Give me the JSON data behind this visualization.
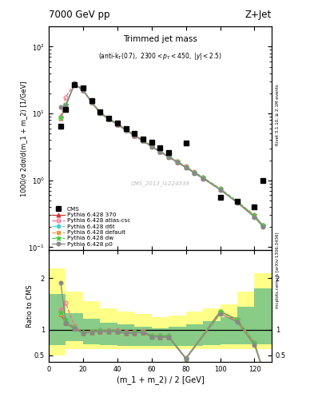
{
  "title_left": "7000 GeV pp",
  "title_right": "Z+Jet",
  "plot_title": "Trimmed jet mass",
  "ylabel_main": "1000/σ 2dσ/d(m_1 + m_2) [1/GeV]",
  "ylabel_ratio": "Ratio to CMS",
  "xlabel": "(m_1 + m_2) / 2 [GeV]",
  "watermark": "CMS_2013_I1224539",
  "rivet_label": "Rivet 3.1.10, ≥ 2.1M events",
  "mcplots_label": "mcplots.cern.ch [arXiv:1306.3436]",
  "x_bins": [
    7,
    10,
    15,
    20,
    25,
    30,
    35,
    40,
    45,
    50,
    55,
    60,
    65,
    70,
    75,
    80,
    85,
    90,
    100,
    110,
    120,
    125
  ],
  "cms_data": [
    6.5,
    11.5,
    27.0,
    24.0,
    15.5,
    10.5,
    8.5,
    7.2,
    6.0,
    5.0,
    4.1,
    3.7,
    3.1,
    2.6,
    null,
    3.6,
    null,
    null,
    0.55,
    0.48,
    0.4,
    1.0
  ],
  "py370": [
    8.5,
    13.0,
    27.5,
    22.5,
    14.8,
    10.2,
    8.2,
    6.9,
    5.6,
    4.7,
    3.9,
    3.2,
    2.68,
    2.24,
    1.88,
    1.57,
    1.3,
    1.08,
    0.73,
    0.47,
    0.29,
    0.21
  ],
  "pyatlas": [
    9.0,
    17.5,
    28.8,
    22.8,
    15.1,
    10.5,
    8.4,
    7.1,
    5.8,
    4.8,
    4.0,
    3.3,
    2.75,
    2.3,
    1.92,
    1.61,
    1.33,
    1.1,
    0.75,
    0.48,
    0.3,
    0.21
  ],
  "pyd6t": [
    8.6,
    13.5,
    27.8,
    22.6,
    14.9,
    10.3,
    8.3,
    7.0,
    5.7,
    4.75,
    3.95,
    3.25,
    2.7,
    2.26,
    1.89,
    1.58,
    1.31,
    1.09,
    0.74,
    0.47,
    0.29,
    0.21
  ],
  "pydefault": [
    8.5,
    13.2,
    27.6,
    22.5,
    14.85,
    10.25,
    8.25,
    6.95,
    5.65,
    4.72,
    3.92,
    3.22,
    2.69,
    2.25,
    1.88,
    1.57,
    1.3,
    1.08,
    0.74,
    0.47,
    0.29,
    0.21
  ],
  "pydw": [
    8.7,
    13.7,
    28.0,
    22.7,
    15.0,
    10.35,
    8.35,
    7.05,
    5.72,
    4.78,
    3.97,
    3.27,
    2.72,
    2.28,
    1.91,
    1.6,
    1.32,
    1.1,
    0.75,
    0.48,
    0.3,
    0.21
  ],
  "pyp0": [
    12.5,
    13.0,
    27.4,
    22.3,
    14.75,
    10.15,
    8.18,
    6.88,
    5.6,
    4.68,
    3.88,
    3.19,
    2.66,
    2.22,
    1.85,
    1.55,
    1.28,
    1.06,
    0.72,
    0.46,
    0.28,
    0.2
  ],
  "ratio_py370": [
    1.3,
    1.13,
    1.02,
    0.94,
    0.95,
    0.97,
    0.97,
    0.96,
    0.93,
    0.94,
    0.95,
    0.87,
    0.86,
    0.86,
    null,
    0.44,
    null,
    null,
    1.35,
    1.18,
    0.73,
    0.21
  ],
  "ratio_pyatlas": [
    1.38,
    1.52,
    1.07,
    0.95,
    0.97,
    0.99,
    0.99,
    0.99,
    0.97,
    0.96,
    0.98,
    0.89,
    0.89,
    0.88,
    null,
    0.45,
    null,
    null,
    1.36,
    1.2,
    0.75,
    0.21
  ],
  "ratio_pyd6t": [
    1.32,
    1.17,
    1.03,
    0.94,
    0.96,
    0.98,
    0.98,
    0.97,
    0.95,
    0.95,
    0.96,
    0.88,
    0.87,
    0.87,
    null,
    0.44,
    null,
    null,
    1.35,
    1.18,
    0.73,
    0.21
  ],
  "ratio_pydefault": [
    1.31,
    1.15,
    1.02,
    0.94,
    0.96,
    0.98,
    0.97,
    0.97,
    0.94,
    0.94,
    0.96,
    0.87,
    0.87,
    0.87,
    null,
    0.44,
    null,
    null,
    1.35,
    1.18,
    0.73,
    0.21
  ],
  "ratio_pydw": [
    1.34,
    1.19,
    1.04,
    0.95,
    0.97,
    0.99,
    0.98,
    0.98,
    0.95,
    0.96,
    0.97,
    0.88,
    0.88,
    0.88,
    null,
    0.44,
    null,
    null,
    1.36,
    1.2,
    0.75,
    0.21
  ],
  "ratio_pyp0": [
    1.92,
    1.13,
    1.02,
    0.93,
    0.95,
    0.97,
    0.96,
    0.96,
    0.93,
    0.94,
    0.95,
    0.86,
    0.86,
    0.85,
    null,
    0.43,
    null,
    null,
    1.31,
    1.15,
    0.7,
    0.2
  ],
  "band_x": [
    0,
    5,
    10,
    20,
    30,
    40,
    50,
    60,
    70,
    80,
    90,
    100,
    110,
    120,
    130
  ],
  "band_yellow_lo": [
    0.5,
    0.5,
    0.62,
    0.62,
    0.62,
    0.62,
    0.62,
    0.62,
    0.62,
    0.62,
    0.62,
    0.62,
    0.62,
    0.62,
    0.62
  ],
  "band_yellow_hi": [
    2.2,
    2.2,
    1.75,
    1.55,
    1.42,
    1.35,
    1.3,
    1.25,
    1.28,
    1.35,
    1.42,
    1.5,
    1.75,
    2.1,
    2.4
  ],
  "band_green_lo": [
    0.7,
    0.7,
    0.78,
    0.72,
    0.7,
    0.68,
    0.68,
    0.68,
    0.68,
    0.68,
    0.7,
    0.72,
    0.72,
    0.72,
    0.72
  ],
  "band_green_hi": [
    1.7,
    1.7,
    1.32,
    1.22,
    1.14,
    1.1,
    1.05,
    1.03,
    1.05,
    1.1,
    1.16,
    1.25,
    1.45,
    1.8,
    2.1
  ],
  "color_py370": "#cc3333",
  "color_pyatlas": "#ff6688",
  "color_pyd6t": "#44cccc",
  "color_pydefault": "#ee9944",
  "color_pydw": "#44cc44",
  "color_pyp0": "#888888",
  "ylim_main": [
    0.09,
    200
  ],
  "ylim_ratio": [
    0.37,
    2.55
  ],
  "xlim": [
    0,
    130
  ],
  "xticks": [
    0,
    20,
    40,
    60,
    80,
    100,
    120
  ]
}
